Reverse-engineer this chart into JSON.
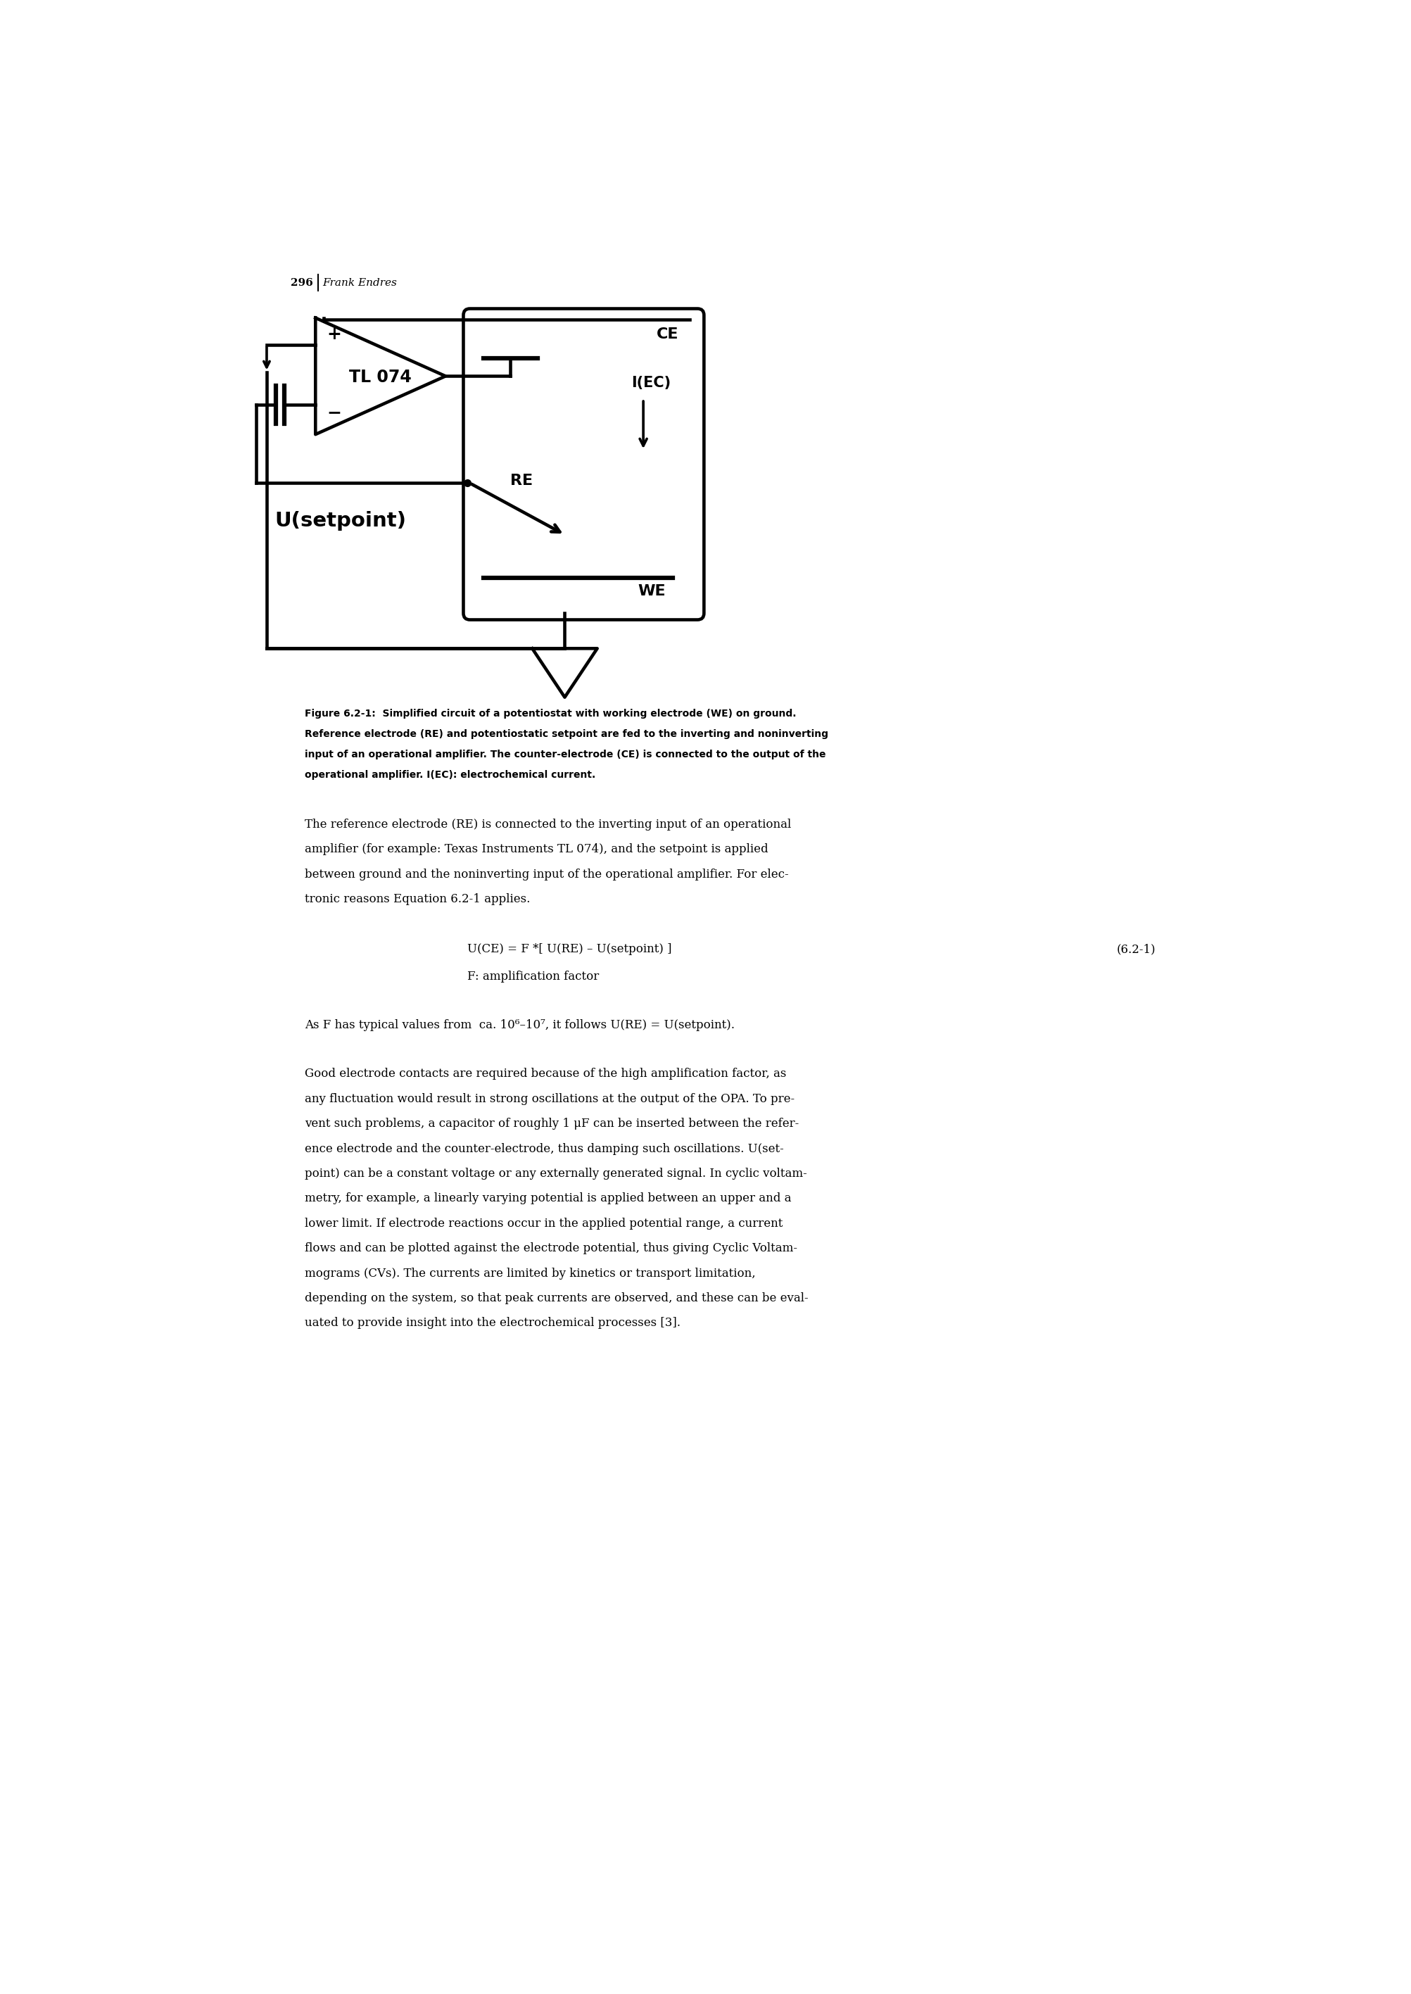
{
  "page_width": 20.06,
  "page_height": 28.33,
  "bg_color": "#ffffff",
  "header_text": "296",
  "header_author": "Frank Endres",
  "figure_caption_bold": "Figure 6.2-1:",
  "figure_caption_rest": "  Simplified circuit of a potentiostat with working electrode (WE) on ground. Reference electrode (RE) and potentiostatic setpoint are fed to the inverting and noninverting input of an operational amplifier. The counter-electrode (CE) is connected to the output of the operational amplifier. I(EC): electrochemical current.",
  "para1_line1": "The reference electrode (RE) is connected to the inverting input of an operational",
  "para1_line2": "amplifier (for example: Texas Instruments TL 074), and the setpoint is applied",
  "para1_line3": "between ground and the noninverting input of the operational amplifier. For elec-",
  "para1_line4": "tronic reasons Equation 6.2-1 applies.",
  "equation_line1": "U(CE) = F *[ U(RE) – U(setpoint) ]",
  "equation_label": "(6.2-1)",
  "equation_line2": "F: amplification factor",
  "para2": "As F has typical values from  ca. 10⁶–10⁷, it follows U(RE) = U(setpoint).",
  "para3_lines": [
    "Good electrode contacts are required because of the high amplification factor, as",
    "any fluctuation would result in strong oscillations at the output of the OPA. To pre-",
    "vent such problems, a capacitor of roughly 1 μF can be inserted between the refer-",
    "ence electrode and the counter-electrode, thus damping such oscillations. U(set-",
    "point) can be a constant voltage or any externally generated signal. In cyclic voltam-",
    "metry, for example, a linearly varying potential is applied between an upper and a",
    "lower limit. If electrode reactions occur in the applied potential range, a current",
    "flows and can be plotted against the electrode potential, thus giving Cyclic Voltam-",
    "mograms (CVs). The currents are limited by kinetics or transport limitation,",
    "depending on the system, so that peak currents are observed, and these can be eval-",
    "uated to provide insight into the electrochemical processes [3]."
  ],
  "line_color": "#000000",
  "lw": 2.2,
  "lw_thick": 4.5
}
